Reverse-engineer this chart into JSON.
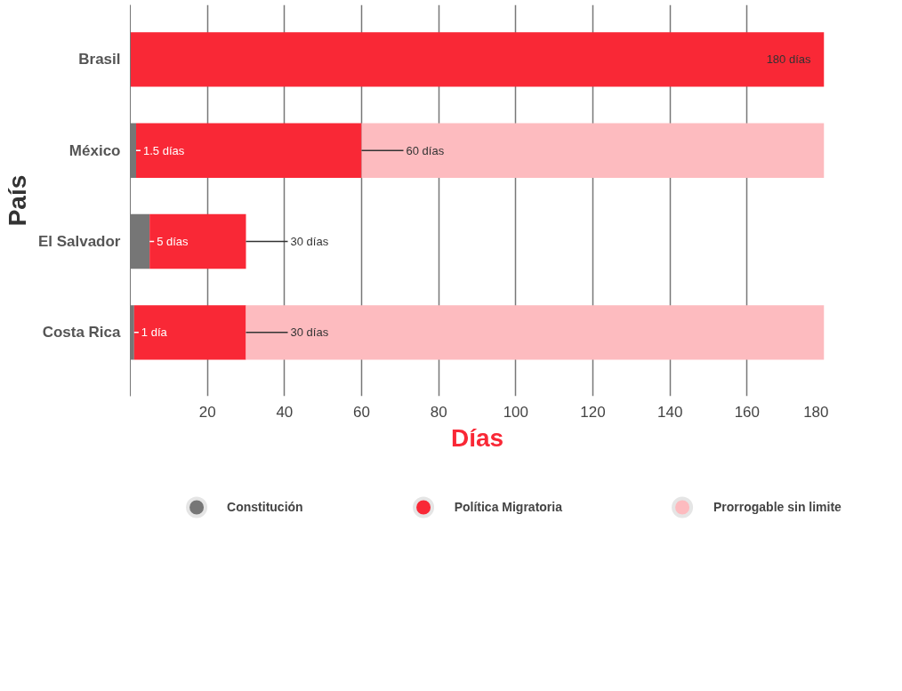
{
  "chart_data": {
    "type": "bar",
    "orientation": "horizontal",
    "stacked": true,
    "xlabel": "Días",
    "ylabel": "País",
    "categories": [
      "Brasil",
      "México",
      "El Salvador",
      "Costa Rica"
    ],
    "series": [
      {
        "name": "Constitución",
        "color": "#767676",
        "values": [
          null,
          1.5,
          5,
          1
        ]
      },
      {
        "name": "Política Migratoria",
        "color": "#f92836",
        "values": [
          180,
          58.5,
          25,
          29
        ]
      },
      {
        "name": "Prorrogable sin limite",
        "color": "#fdbbbf",
        "values": [
          null,
          120,
          null,
          150
        ]
      }
    ],
    "xlim": [
      0,
      180
    ],
    "xticks": [
      20,
      40,
      60,
      80,
      100,
      120,
      140,
      160,
      180
    ],
    "grid": "x",
    "legend": "bottom",
    "annotations": [
      {
        "text": "180 días",
        "x": 180,
        "y": "Brasil"
      },
      {
        "text": "1.5 días",
        "x": 1.5,
        "y": "México"
      },
      {
        "text": "60 días",
        "x": 60,
        "y": "México"
      },
      {
        "text": "5 días",
        "x": 5,
        "y": "El Salvador"
      },
      {
        "text": "30 días",
        "x": 30,
        "y": "El Salvador"
      },
      {
        "text": "1 día",
        "x": 1,
        "y": "Costa Rica"
      },
      {
        "text": "30 días",
        "x": 30,
        "y": "Costa Rica"
      }
    ]
  }
}
